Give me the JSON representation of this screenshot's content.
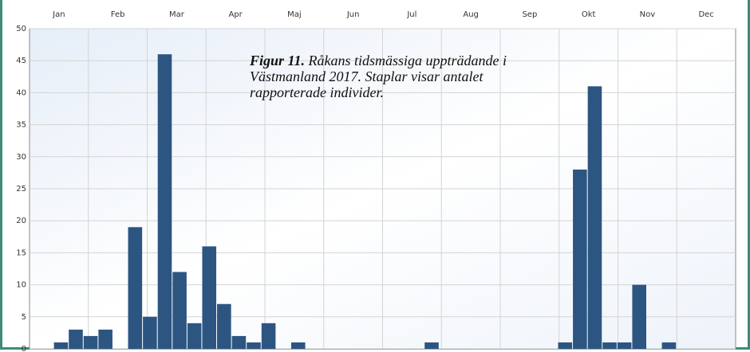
{
  "chart_data": {
    "type": "bar",
    "months": [
      "Jan",
      "Feb",
      "Mar",
      "Apr",
      "Maj",
      "Jun",
      "Jul",
      "Aug",
      "Sep",
      "Okt",
      "Nov",
      "Dec"
    ],
    "annotation_label": "Figur 11.",
    "annotation": "Råkans tidsmässiga uppträdande i Västmanland 2017. Staplar visar antalet rapporterade individer.",
    "x": [
      2,
      3,
      4,
      5,
      7,
      8,
      9,
      10,
      11,
      12,
      13,
      14,
      15,
      16,
      18,
      27,
      36,
      37,
      38,
      39,
      40,
      41,
      43
    ],
    "values": [
      1,
      3,
      2,
      3,
      19,
      5,
      46,
      12,
      4,
      16,
      7,
      2,
      1,
      4,
      1,
      1,
      1,
      28,
      41,
      1,
      1,
      10,
      1
    ],
    "xlim": [
      0.38,
      48
    ],
    "ylim": [
      0,
      50
    ],
    "yticks": [
      0,
      5,
      10,
      15,
      20,
      25,
      30,
      35,
      40,
      45,
      50
    ],
    "color": "#2d5581",
    "grid": true
  }
}
